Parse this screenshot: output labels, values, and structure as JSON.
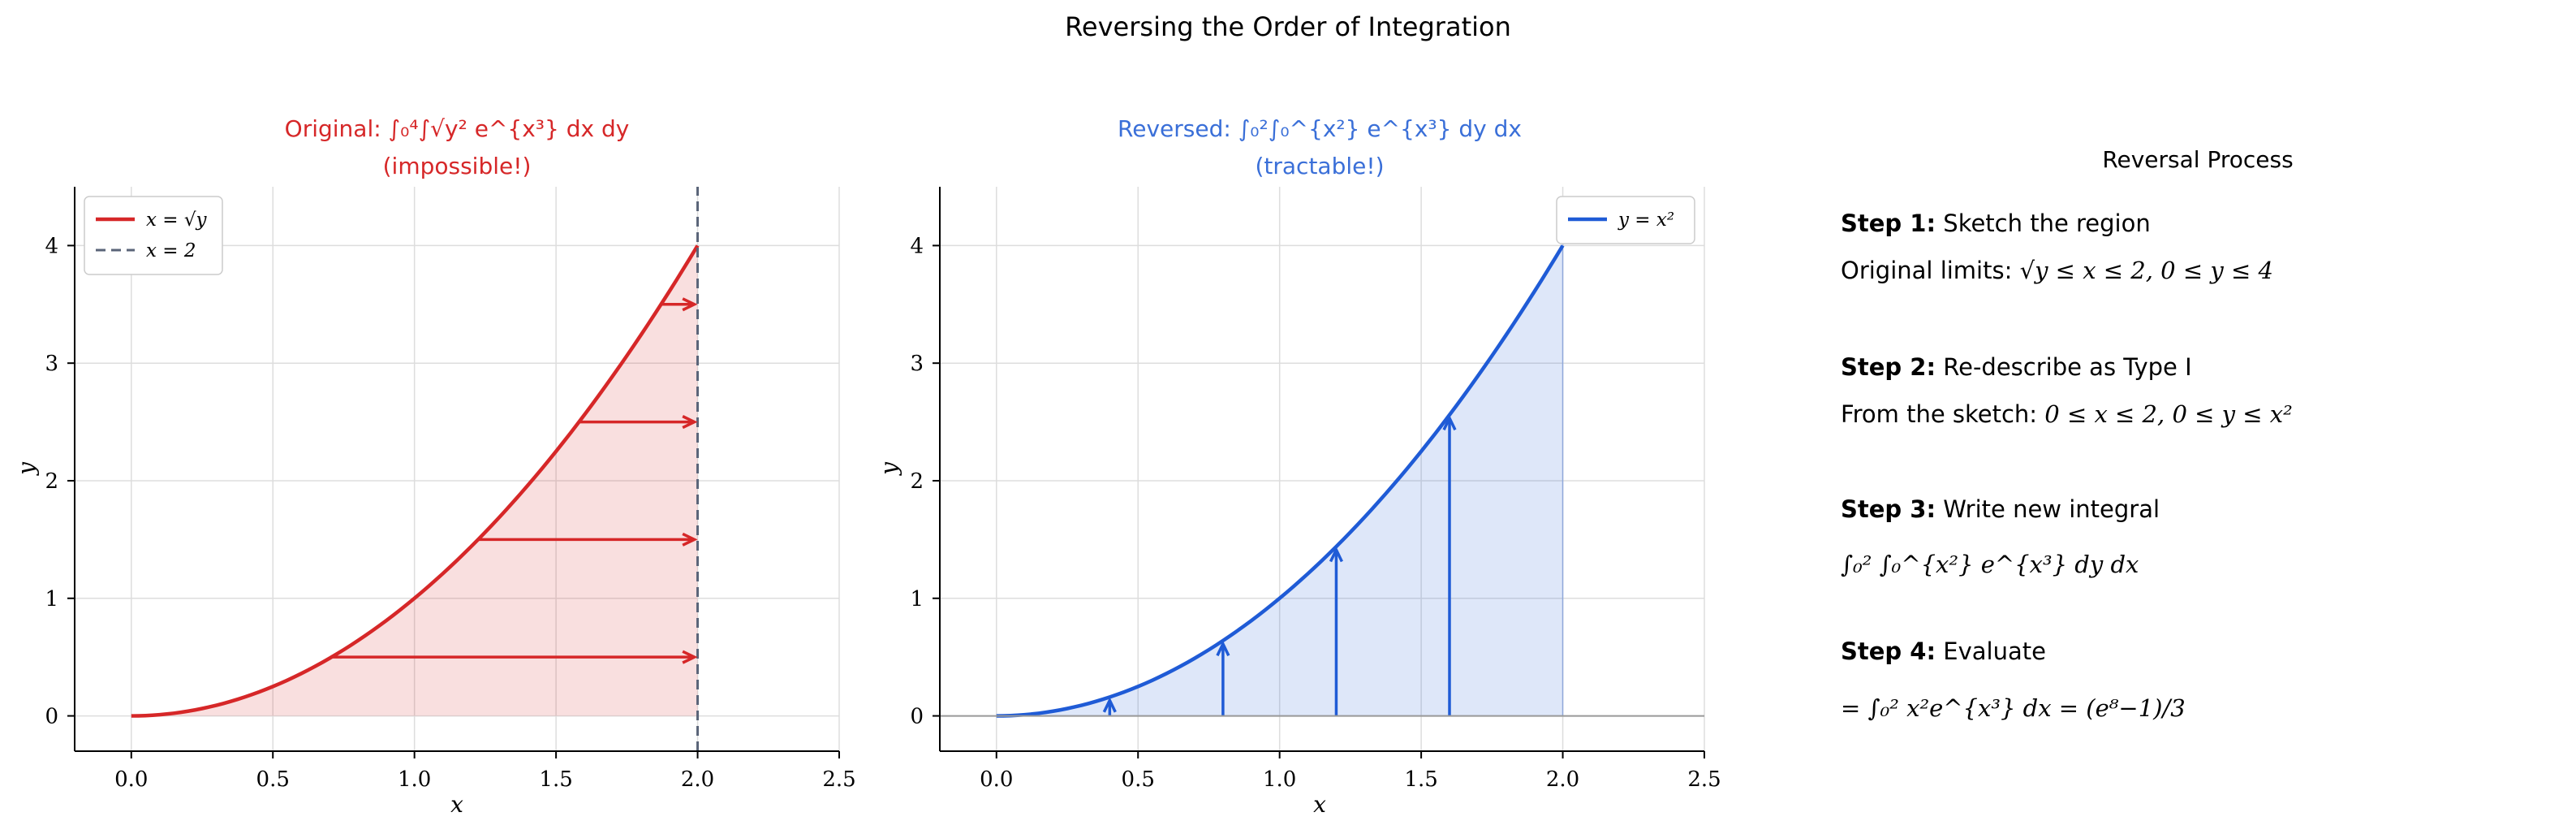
{
  "figure_title": "Reversing the Order of Integration",
  "chart_data": [
    {
      "type": "line",
      "title_line1": "Original: ∫₀⁴∫√y² e^{x³} dx dy",
      "title_line2": "(impossible!)",
      "title_color": "#d62728",
      "xlabel": "x",
      "ylabel": "y",
      "xlim": [
        -0.2,
        2.5
      ],
      "ylim": [
        -0.3,
        4.5
      ],
      "xticks": [
        "0.0",
        "0.5",
        "1.0",
        "1.5",
        "2.0",
        "2.5"
      ],
      "yticks": [
        "0",
        "1",
        "2",
        "3",
        "4"
      ],
      "grid": true,
      "legend_placement": "top-left",
      "series": [
        {
          "name": "x = √y",
          "color": "#d62728",
          "style": "solid",
          "x": [
            0,
            0.25,
            0.5,
            0.75,
            1.0,
            1.25,
            1.5,
            1.75,
            2.0
          ],
          "y": [
            0,
            0.0625,
            0.25,
            0.5625,
            1.0,
            1.5625,
            2.25,
            3.0625,
            4.0
          ]
        },
        {
          "name": "x = 2",
          "color": "#5a6478",
          "style": "dashed",
          "x": [
            2,
            2
          ],
          "y": [
            -0.3,
            4.5
          ]
        }
      ],
      "shaded_region": {
        "color": "#d62728",
        "opacity": 0.15,
        "between": "y=x^2 and y=0, 0<=x<=2"
      },
      "arrows": [
        {
          "y": 0.5,
          "x_from": 0.707,
          "x_to": 2.0
        },
        {
          "y": 1.5,
          "x_from": 1.225,
          "x_to": 2.0
        },
        {
          "y": 2.5,
          "x_from": 1.581,
          "x_to": 2.0
        },
        {
          "y": 3.5,
          "x_from": 1.871,
          "x_to": 2.0
        }
      ]
    },
    {
      "type": "line",
      "title_line1": "Reversed: ∫₀²∫₀^{x²} e^{x³} dy dx",
      "title_line2": "(tractable!)",
      "title_color": "#3a6fd8",
      "xlabel": "x",
      "ylabel": "y",
      "xlim": [
        -0.2,
        2.5
      ],
      "ylim": [
        -0.3,
        4.5
      ],
      "xticks": [
        "0.0",
        "0.5",
        "1.0",
        "1.5",
        "2.0",
        "2.5"
      ],
      "yticks": [
        "0",
        "1",
        "2",
        "3",
        "4"
      ],
      "grid": true,
      "legend_placement": "top-right",
      "series": [
        {
          "name": "y = x²",
          "color": "#1f5bd6",
          "style": "solid",
          "x": [
            0,
            0.25,
            0.5,
            0.75,
            1.0,
            1.25,
            1.5,
            1.75,
            2.0
          ],
          "y": [
            0,
            0.0625,
            0.25,
            0.5625,
            1.0,
            1.5625,
            2.25,
            3.0625,
            4.0
          ]
        }
      ],
      "shaded_region": {
        "color": "#1f5bd6",
        "opacity": 0.15,
        "between": "y=x^2 and y=0, 0<=x<=2"
      },
      "arrows": [
        {
          "x": 0.4,
          "y_from": 0.0,
          "y_to": 0.16
        },
        {
          "x": 0.8,
          "y_from": 0.0,
          "y_to": 0.64
        },
        {
          "x": 1.2,
          "y_from": 0.0,
          "y_to": 1.44
        },
        {
          "x": 1.6,
          "y_from": 0.0,
          "y_to": 2.56
        }
      ]
    }
  ],
  "panel": {
    "title": "Reversal Process",
    "steps": [
      {
        "label": "Step 1:",
        "heading": "Sketch the region",
        "text_prefix": "Original limits: ",
        "math": "√y ≤ x ≤ 2, 0 ≤ y ≤ 4"
      },
      {
        "label": "Step 2:",
        "heading": "Re-describe as Type I",
        "text_prefix": "From the sketch: ",
        "math": "0 ≤ x ≤ 2, 0 ≤ y ≤ x²"
      },
      {
        "label": "Step 3:",
        "heading": "Write new integral",
        "text_prefix": "",
        "math": "∫₀² ∫₀^{x²} e^{x³} dy dx"
      },
      {
        "label": "Step 4:",
        "heading": "Evaluate",
        "text_prefix": "",
        "math": "= ∫₀² x²e^{x³} dx = (e⁸−1)/3"
      }
    ]
  }
}
